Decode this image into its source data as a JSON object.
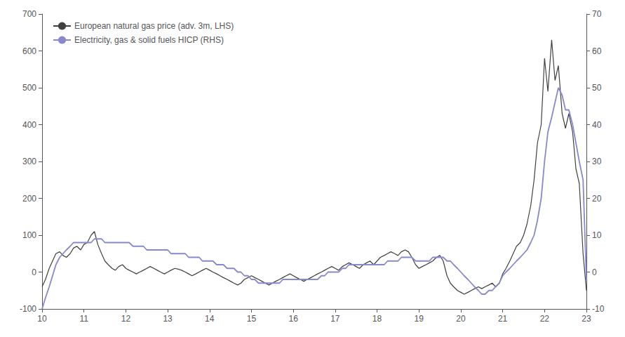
{
  "chart_data": {
    "type": "line",
    "x": [
      10.0,
      10.08,
      10.17,
      10.25,
      10.33,
      10.42,
      10.5,
      10.58,
      10.67,
      10.75,
      10.83,
      10.92,
      11.0,
      11.08,
      11.17,
      11.25,
      11.33,
      11.42,
      11.5,
      11.58,
      11.67,
      11.75,
      11.83,
      11.92,
      12.0,
      12.08,
      12.17,
      12.25,
      12.33,
      12.42,
      12.5,
      12.58,
      12.67,
      12.75,
      12.83,
      12.92,
      13.0,
      13.08,
      13.17,
      13.25,
      13.33,
      13.42,
      13.5,
      13.58,
      13.67,
      13.75,
      13.83,
      13.92,
      14.0,
      14.08,
      14.17,
      14.25,
      14.33,
      14.42,
      14.5,
      14.58,
      14.67,
      14.75,
      14.83,
      14.92,
      15.0,
      15.08,
      15.17,
      15.25,
      15.33,
      15.42,
      15.5,
      15.58,
      15.67,
      15.75,
      15.83,
      15.92,
      16.0,
      16.08,
      16.17,
      16.25,
      16.33,
      16.42,
      16.5,
      16.58,
      16.67,
      16.75,
      16.83,
      16.92,
      17.0,
      17.08,
      17.17,
      17.25,
      17.33,
      17.42,
      17.5,
      17.58,
      17.67,
      17.75,
      17.83,
      17.92,
      18.0,
      18.08,
      18.17,
      18.25,
      18.33,
      18.42,
      18.5,
      18.58,
      18.67,
      18.75,
      18.83,
      18.92,
      19.0,
      19.08,
      19.17,
      19.25,
      19.33,
      19.42,
      19.5,
      19.58,
      19.67,
      19.75,
      19.83,
      19.92,
      20.0,
      20.08,
      20.17,
      20.25,
      20.33,
      20.42,
      20.5,
      20.58,
      20.67,
      20.75,
      20.83,
      20.92,
      21.0,
      21.08,
      21.17,
      21.25,
      21.33,
      21.42,
      21.5,
      21.58,
      21.67,
      21.75,
      21.83,
      21.92,
      22.0,
      22.08,
      22.17,
      22.25,
      22.33,
      22.42,
      22.5,
      22.58,
      22.67,
      22.75,
      22.83,
      22.92,
      23.0
    ],
    "series": [
      {
        "name": "European natural gas price (adv. 3m, LHS)",
        "color": "#404040",
        "values": [
          -40,
          -20,
          10,
          30,
          50,
          55,
          45,
          40,
          50,
          65,
          70,
          60,
          75,
          80,
          100,
          110,
          75,
          50,
          30,
          20,
          10,
          5,
          15,
          20,
          10,
          5,
          0,
          -5,
          0,
          5,
          10,
          15,
          10,
          5,
          0,
          -5,
          0,
          5,
          10,
          8,
          5,
          0,
          -5,
          -10,
          -5,
          0,
          5,
          10,
          5,
          0,
          -5,
          -10,
          -15,
          -20,
          -25,
          -30,
          -35,
          -30,
          -20,
          -15,
          -10,
          -15,
          -20,
          -25,
          -30,
          -35,
          -30,
          -25,
          -20,
          -15,
          -10,
          -5,
          -10,
          -15,
          -20,
          -25,
          -20,
          -15,
          -10,
          -5,
          0,
          5,
          10,
          15,
          10,
          5,
          15,
          20,
          25,
          20,
          15,
          10,
          20,
          25,
          30,
          20,
          30,
          40,
          45,
          50,
          55,
          50,
          45,
          55,
          60,
          55,
          40,
          20,
          10,
          15,
          20,
          25,
          30,
          40,
          45,
          30,
          -10,
          -30,
          -40,
          -50,
          -55,
          -60,
          -55,
          -50,
          -45,
          -40,
          -45,
          -40,
          -35,
          -30,
          -40,
          -30,
          -5,
          10,
          30,
          50,
          70,
          80,
          100,
          130,
          180,
          250,
          350,
          400,
          580,
          490,
          630,
          520,
          560,
          430,
          390,
          430,
          380,
          280,
          240,
          50,
          -50
        ]
      },
      {
        "name": "Electricity, gas & solid fuels HICP (RHS)",
        "color": "#8888cc",
        "axis": "y2",
        "values": [
          -10,
          -7,
          -4,
          -1,
          2,
          4,
          5,
          6,
          7,
          8,
          8,
          8,
          8,
          8,
          8,
          9,
          9,
          9,
          8,
          8,
          8,
          8,
          8,
          8,
          8,
          8,
          7,
          7,
          7,
          7,
          6,
          6,
          6,
          6,
          6,
          6,
          6,
          5,
          5,
          5,
          5,
          5,
          4,
          4,
          4,
          4,
          3,
          3,
          3,
          3,
          2,
          2,
          2,
          1,
          1,
          1,
          0,
          0,
          -1,
          -1,
          -2,
          -2,
          -3,
          -3,
          -3,
          -3,
          -3,
          -3,
          -3,
          -2,
          -2,
          -2,
          -2,
          -2,
          -2,
          -2,
          -2,
          -2,
          -2,
          -2,
          -1,
          -1,
          0,
          0,
          0,
          0,
          1,
          1,
          2,
          2,
          2,
          2,
          2,
          2,
          2,
          2,
          2,
          2,
          2,
          3,
          3,
          3,
          3,
          4,
          4,
          4,
          4,
          3,
          3,
          3,
          3,
          3,
          4,
          4,
          4,
          4,
          3,
          3,
          2,
          1,
          0,
          -1,
          -2,
          -3,
          -4,
          -5,
          -6,
          -6,
          -5,
          -5,
          -4,
          -3,
          -1,
          0,
          1,
          2,
          3,
          4,
          5,
          6,
          8,
          10,
          14,
          20,
          30,
          38,
          42,
          46,
          50,
          48,
          44,
          44,
          40,
          35,
          30,
          25,
          -2
        ]
      }
    ],
    "xlim": [
      10,
      23
    ],
    "xticks": [
      10,
      11,
      12,
      13,
      14,
      15,
      16,
      17,
      18,
      19,
      20,
      21,
      22,
      23
    ],
    "ylim": [
      -100,
      700
    ],
    "yticks": [
      -100,
      0,
      100,
      200,
      300,
      400,
      500,
      600,
      700
    ],
    "y2lim": [
      -10,
      70
    ],
    "y2ticks": [
      -10,
      0,
      10,
      20,
      30,
      40,
      50,
      60,
      70
    ],
    "grid": false,
    "legend": "upper left"
  }
}
